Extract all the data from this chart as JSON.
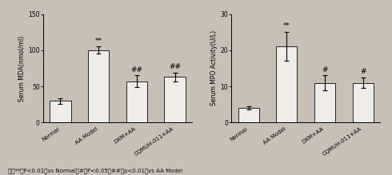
{
  "left_chart": {
    "ylabel": "Serum MDA(nmol/ml)",
    "ylim": [
      0,
      150
    ],
    "yticks": [
      0,
      50,
      100,
      150
    ],
    "categories": [
      "Normal",
      "AA Model",
      "DXM+AA",
      "CQMUH-011+AA"
    ],
    "values": [
      30,
      100,
      57,
      63
    ],
    "errors": [
      4,
      5,
      8,
      6
    ],
    "significance": [
      "",
      "**",
      "##",
      "##"
    ],
    "bar_color": "#f0ece8",
    "bar_edgecolor": "#222222"
  },
  "right_chart": {
    "ylabel": "Serum MPO Activity(U/L)",
    "ylim": [
      0,
      30
    ],
    "yticks": [
      0,
      10,
      20,
      30
    ],
    "categories": [
      "Normal",
      "AA Model",
      "DXM+AA",
      "CQMUH-011+AA"
    ],
    "values": [
      4,
      21,
      11,
      11
    ],
    "errors": [
      0.5,
      4,
      2,
      1.5
    ],
    "significance": [
      "",
      "**",
      "#",
      "#"
    ],
    "bar_color": "#f0ece8",
    "bar_edgecolor": "#222222"
  },
  "footnote": "注： **： P<0.01， vs Normal； #： P<0.05， ##： p<0.01， vs AA Model",
  "footnote_ascii": "注： **： P<0.01， vs Normal； #： P<0.05， ##： p<0.01， vs AA Model",
  "background_color": "#c8bfb5",
  "fig_width": 4.9,
  "fig_height": 2.19,
  "dpi": 100
}
